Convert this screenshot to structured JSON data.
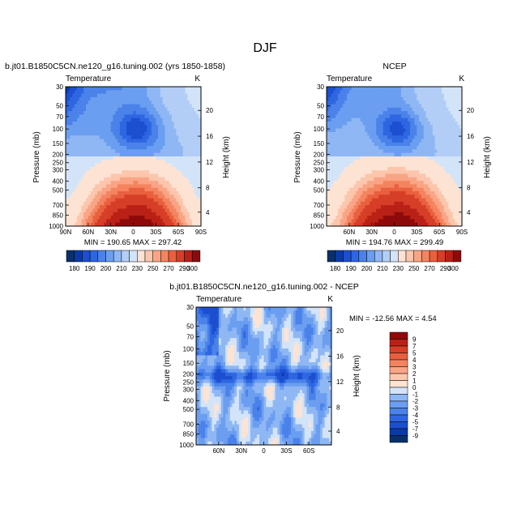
{
  "main_title": "DJF",
  "colors": {
    "cool": [
      "#08306b",
      "#0a3aa8",
      "#1c4fd0",
      "#2e66e2",
      "#4a82ea",
      "#6b9ef0",
      "#8fb7f4",
      "#b3cef6",
      "#d3e4f9"
    ],
    "neutral": "#ffffff",
    "warm": [
      "#fde3d3",
      "#fcc6ad",
      "#f9a585",
      "#f4845f",
      "#e9603f",
      "#d63e27",
      "#b92116",
      "#8e0a0a"
    ]
  },
  "chart_data": [
    {
      "type": "heatmap",
      "title": "b.jt01.B1850C5CN.ne120_g16.tuning.002 (yrs 1850-1858)",
      "subtitle": "Temperature",
      "units": "K",
      "ylabel": "Pressure (mb)",
      "y2label": "Height (km)",
      "xlim": [
        "90N",
        "90S"
      ],
      "x_ticks": [
        "90N",
        "60N",
        "30N",
        "0",
        "30S",
        "60S",
        "90S"
      ],
      "y_ticks": [
        "30",
        "50",
        "70",
        "100",
        "150",
        "200",
        "250",
        "300",
        "400",
        "500",
        "700",
        "850",
        "1000"
      ],
      "y2_ticks": [
        "20",
        "16",
        "12",
        "8",
        "4"
      ],
      "stats": "MIN = 190.65   MAX = 297.42",
      "min": 190.65,
      "max": 297.42
    },
    {
      "type": "heatmap",
      "title": "NCEP",
      "subtitle": "Temperature",
      "units": "K",
      "ylabel": "Pressure (mb)",
      "y2label": "Height (km)",
      "xlim": [
        "90N",
        "90S"
      ],
      "x_ticks": [
        "60N",
        "30N",
        "0",
        "30S",
        "60S",
        "90S"
      ],
      "y_ticks": [
        "30",
        "50",
        "70",
        "100",
        "150",
        "200",
        "250",
        "300",
        "400",
        "500",
        "700",
        "850",
        "1000"
      ],
      "y2_ticks": [
        "20",
        "16",
        "12",
        "8",
        "4"
      ],
      "stats": "MIN = 194.76   MAX = 299.49",
      "min": 194.76,
      "max": 299.49
    },
    {
      "type": "heatmap",
      "title": "b.jt01.B1850C5CN.ne120_g16.tuning.002 - NCEP",
      "subtitle": "Temperature",
      "units": "K",
      "ylabel": "Pressure (mb)",
      "y2label": "Height (km)",
      "x_ticks": [
        "60N",
        "30N",
        "0",
        "30S",
        "60S"
      ],
      "y_ticks": [
        "30",
        "50",
        "70",
        "100",
        "150",
        "200",
        "250",
        "300",
        "400",
        "500",
        "700",
        "850",
        "1000"
      ],
      "y2_ticks": [
        "20",
        "16",
        "12",
        "8",
        "4"
      ],
      "stats": "MIN = -12.56   MAX =    4.54",
      "min": -12.56,
      "max": 4.54
    }
  ],
  "colorbars": {
    "shared_levels": [
      "180",
      "190",
      "200",
      "210",
      "220",
      "230",
      "240",
      "250",
      "260",
      "270",
      "280",
      "290",
      "300"
    ],
    "shared_labels": [
      "180",
      "190",
      "200",
      "210",
      "230",
      "250",
      "270",
      "290",
      "300"
    ],
    "diff_levels": [
      "9",
      "7",
      "5",
      "4",
      "3",
      "2",
      "1",
      "0",
      "-1",
      "-2",
      "-3",
      "-4",
      "-5",
      "-7",
      "-9"
    ]
  }
}
